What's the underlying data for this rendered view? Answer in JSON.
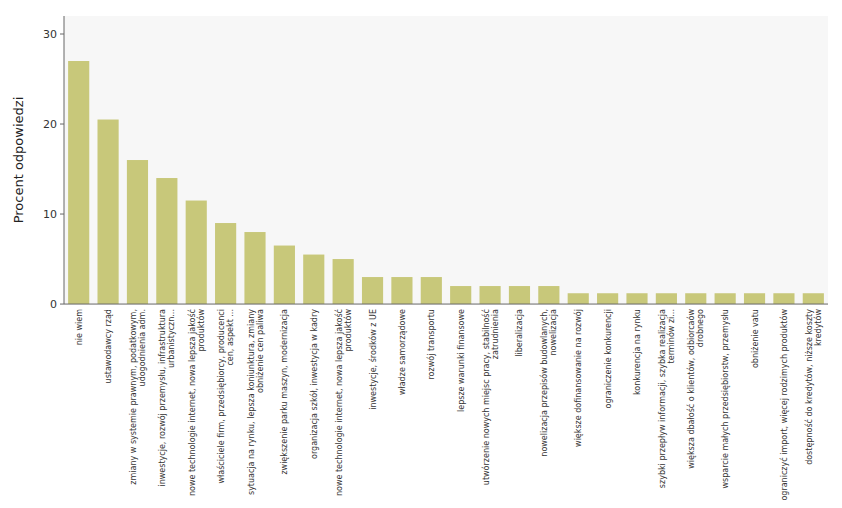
{
  "chart_data": {
    "type": "bar",
    "ylabel": "Procent odpowiedzi",
    "categories": [
      "nie wiem",
      "ustawodawcy rząd",
      "zmiany w systemie prawnym, podatkowym,\nudogodnienia adm.",
      "inwestycje, rozwój przemysłu, infrastruktura\nurbanistyczn...",
      "nowe technologie internet, nowa lepsza jakość\nproduktów",
      "właściciele firm, przedsiębiorcy, producenci\ncen, aspekt ...",
      "sytuacja na rynku, lepsza koniunktura, zmiany\nobniżenie cen paliwa",
      "zwiększenie parku maszyn, modernizacja",
      "organizacja szkół, inwestycja w kadry",
      "nowe technologie internet, nowa lepsza jakość\nproduktów",
      "inwestycje, środków z UE",
      "władze samorządowe",
      "rozwój transportu",
      "lepsze warunki finansowe",
      "utwórzenie nowych miejsc pracy, stabilność\nzatrudnienia",
      "liberalizacja",
      "nowelizacja przepisów budowlanych,\nnowelizacja",
      "większe dofinansowanie na rozwój",
      "ograniczenie konkurencji",
      "konkurencja na rynku",
      "szybki przepływ informacji, szybka realizacja\nterminów zi...",
      "większa dbałość o klientów, odbiorcaów\ndrobnego",
      "wsparcie małych przedsiębiorstw, przemysłu",
      "obniżenie vatu",
      "ograniczyć import, więcej rodzimych produktów",
      "dostępność do kredytów, niższe koszty\nkredytów"
    ],
    "values": [
      27.0,
      20.5,
      16.0,
      14.0,
      11.5,
      9.0,
      8.0,
      6.5,
      5.5,
      5.0,
      3.0,
      3.0,
      3.0,
      2.0,
      2.0,
      2.0,
      2.0,
      1.2,
      1.2,
      1.2,
      1.2,
      1.2,
      1.2,
      1.2,
      1.2,
      1.2
    ],
    "color": "#c8c87a",
    "ylim": [
      0,
      32
    ],
    "yticks": [
      0,
      10,
      20,
      30
    ],
    "grid": false
  }
}
